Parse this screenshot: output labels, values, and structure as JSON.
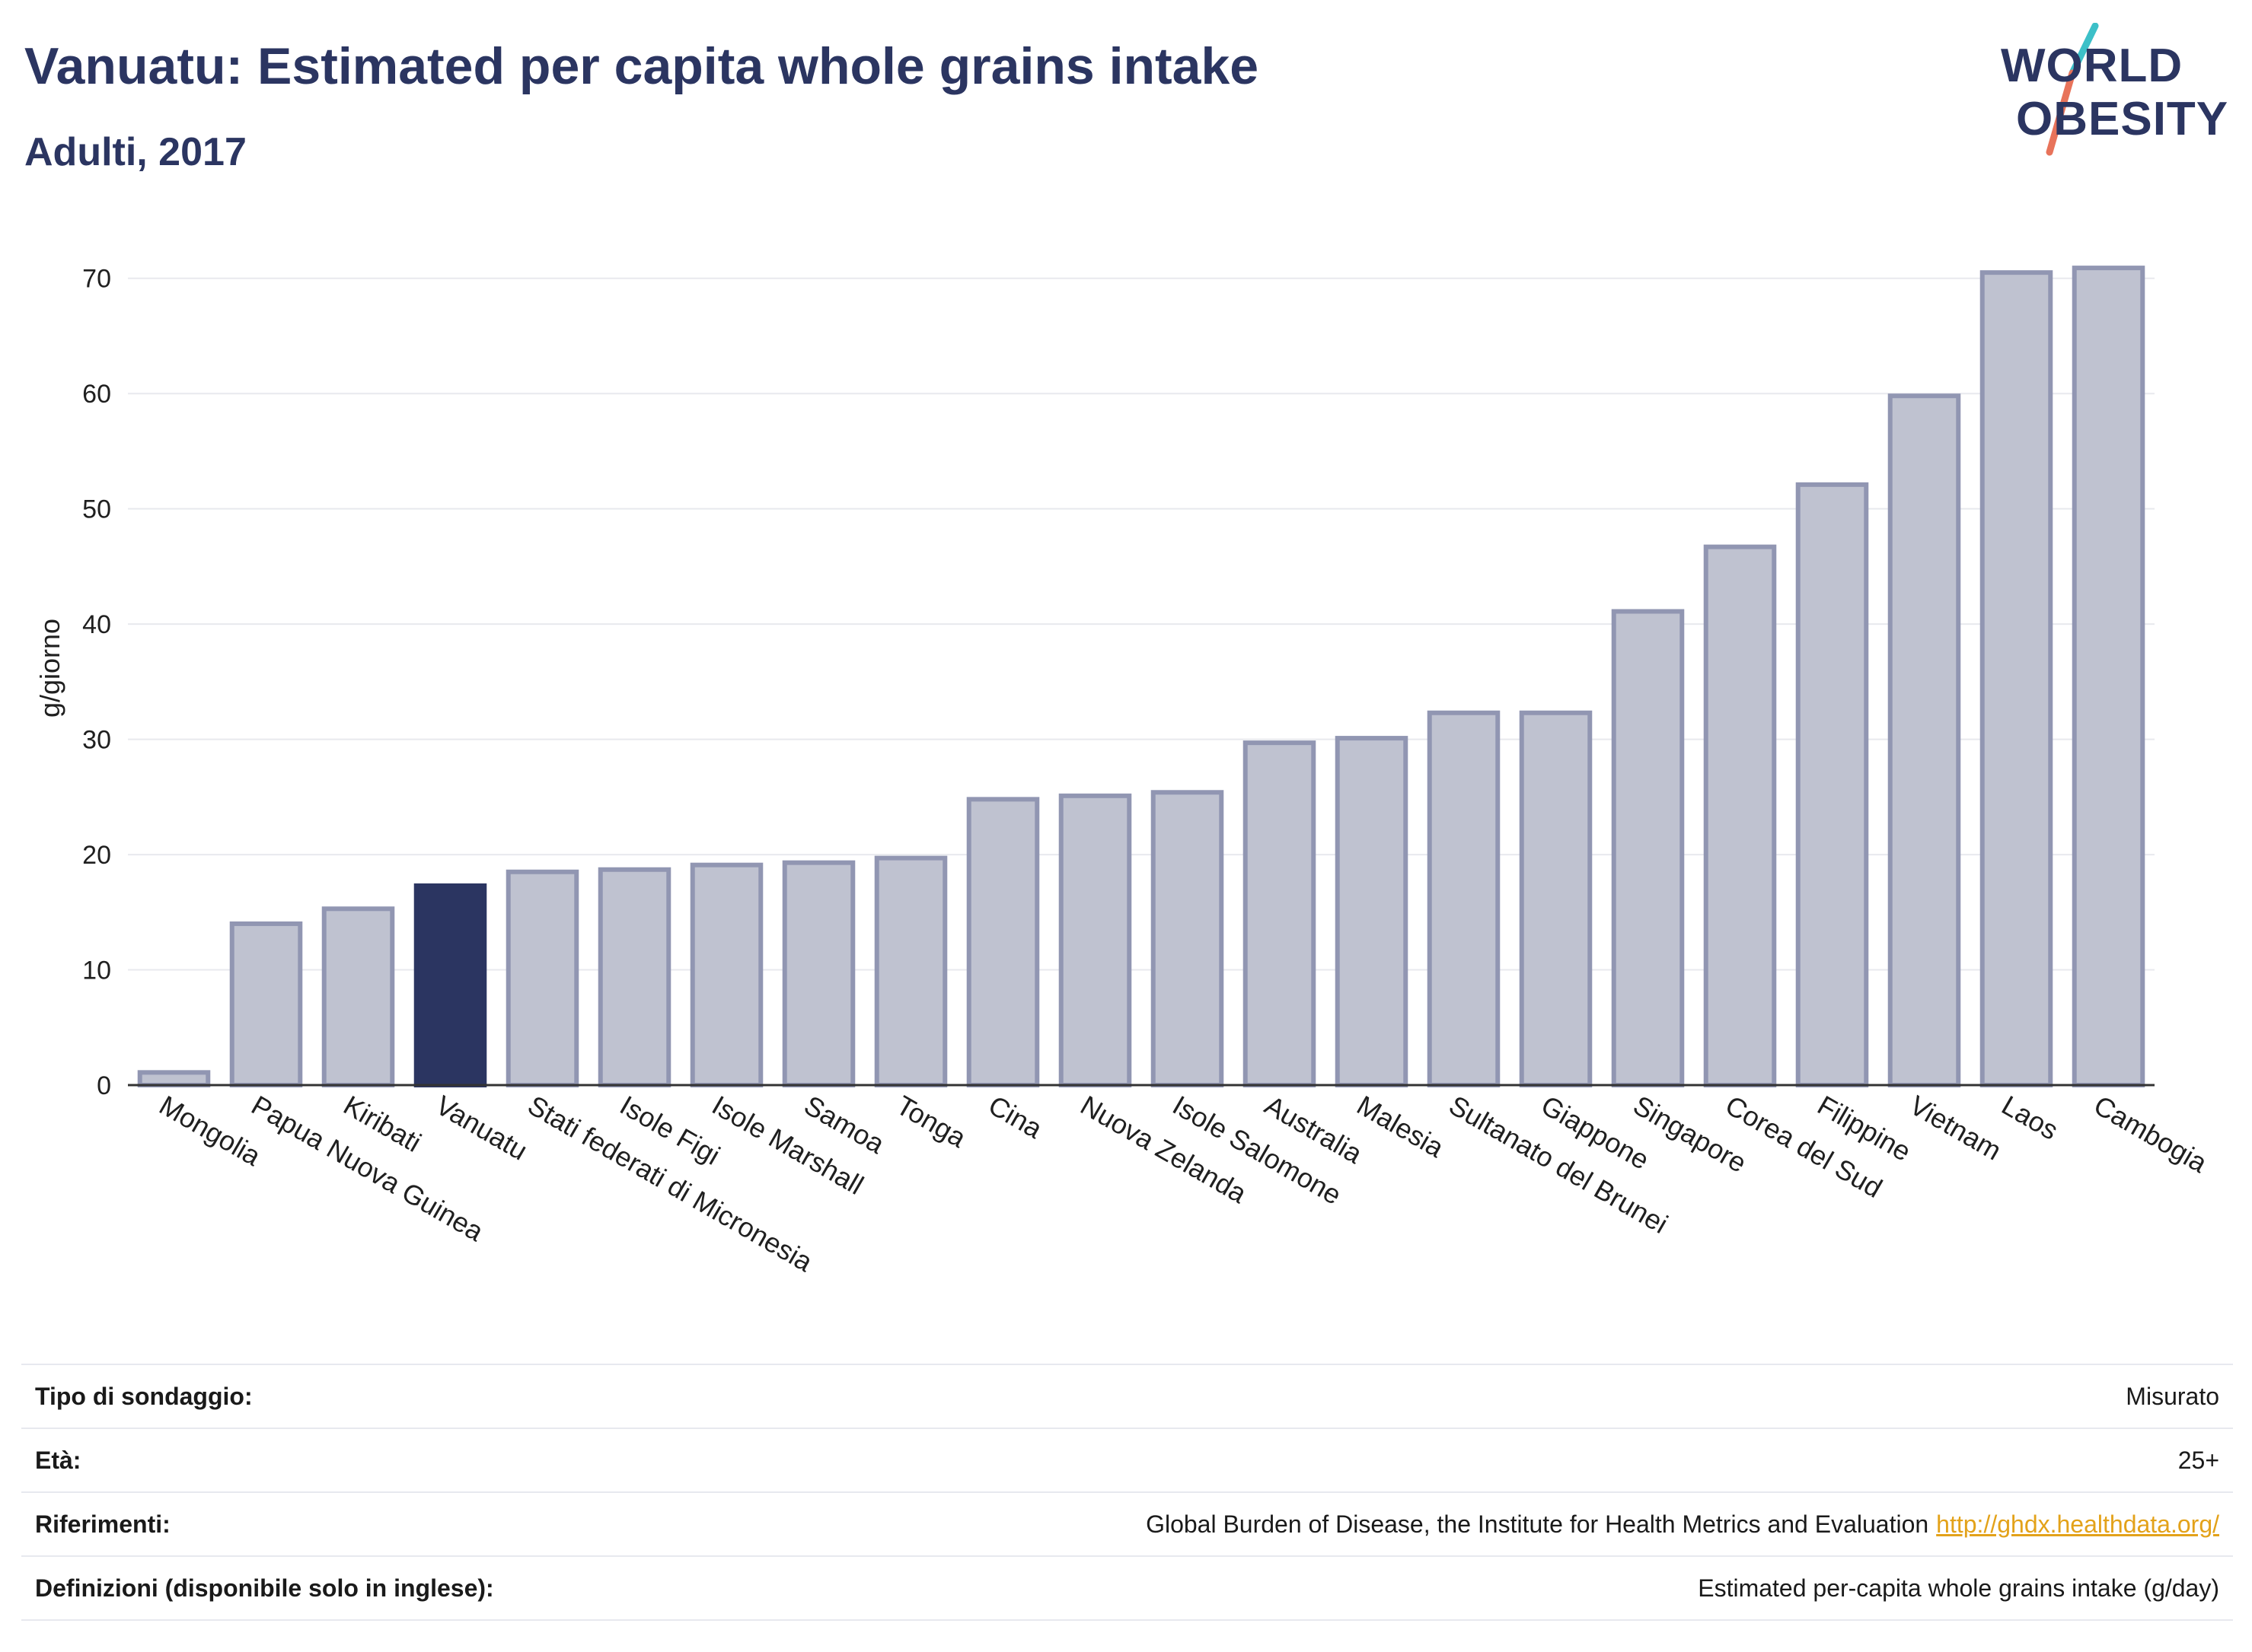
{
  "header": {
    "title": "Vanuatu: Estimated per capita whole grains intake",
    "subtitle": "Adulti, 2017"
  },
  "logo": {
    "line1": "WORLD",
    "line2": "OBESITY",
    "colors": {
      "text": "#2b3561",
      "slash_teal": "#3cc0c8",
      "slash_coral": "#e8735a"
    }
  },
  "chart_data": {
    "type": "bar",
    "title": "Vanuatu: Estimated per capita whole grains intake",
    "subtitle": "Adulti, 2017",
    "ylabel": "g/giorno",
    "xlabel": "",
    "ylim": [
      0,
      75
    ],
    "yticks": [
      0,
      10,
      20,
      30,
      40,
      50,
      60,
      70
    ],
    "grid": true,
    "highlight": "Vanuatu",
    "categories": [
      "Mongolia",
      "Papua Nuova Guinea",
      "Kiribati",
      "Vanuatu",
      "Stati federati di Micronesia",
      "Isole Figi",
      "Isole Marshall",
      "Samoa",
      "Tonga",
      "Cina",
      "Nuova Zelanda",
      "Isole Salomone",
      "Australia",
      "Malesia",
      "Sultanato del Brunei",
      "Giappone",
      "Singapore",
      "Corea del Sud",
      "Filippine",
      "Vietnam",
      "Laos",
      "Cambogia"
    ],
    "values": [
      1.1,
      14.0,
      15.3,
      17.3,
      18.5,
      18.7,
      19.1,
      19.3,
      19.7,
      24.8,
      25.1,
      25.4,
      29.7,
      30.1,
      32.3,
      32.3,
      41.1,
      46.7,
      52.1,
      59.8,
      70.5,
      70.9
    ],
    "colors": {
      "bar": "#bfc2d0",
      "bar_edge": "#9196b2",
      "highlight": "#2b3561",
      "grid": "#e8e9ee",
      "axis": "#333333"
    }
  },
  "info_table": [
    {
      "label": "Tipo di sondaggio:",
      "value": "Misurato"
    },
    {
      "label": "Età:",
      "value": "25+"
    },
    {
      "label": "Riferimenti:",
      "value": "Global Burden of Disease, the Institute for Health Metrics and Evaluation",
      "link": "http://ghdx.healthdata.org/"
    },
    {
      "label": "Definizioni (disponibile solo in inglese):",
      "value": "Estimated per-capita whole grains intake (g/day)"
    }
  ]
}
